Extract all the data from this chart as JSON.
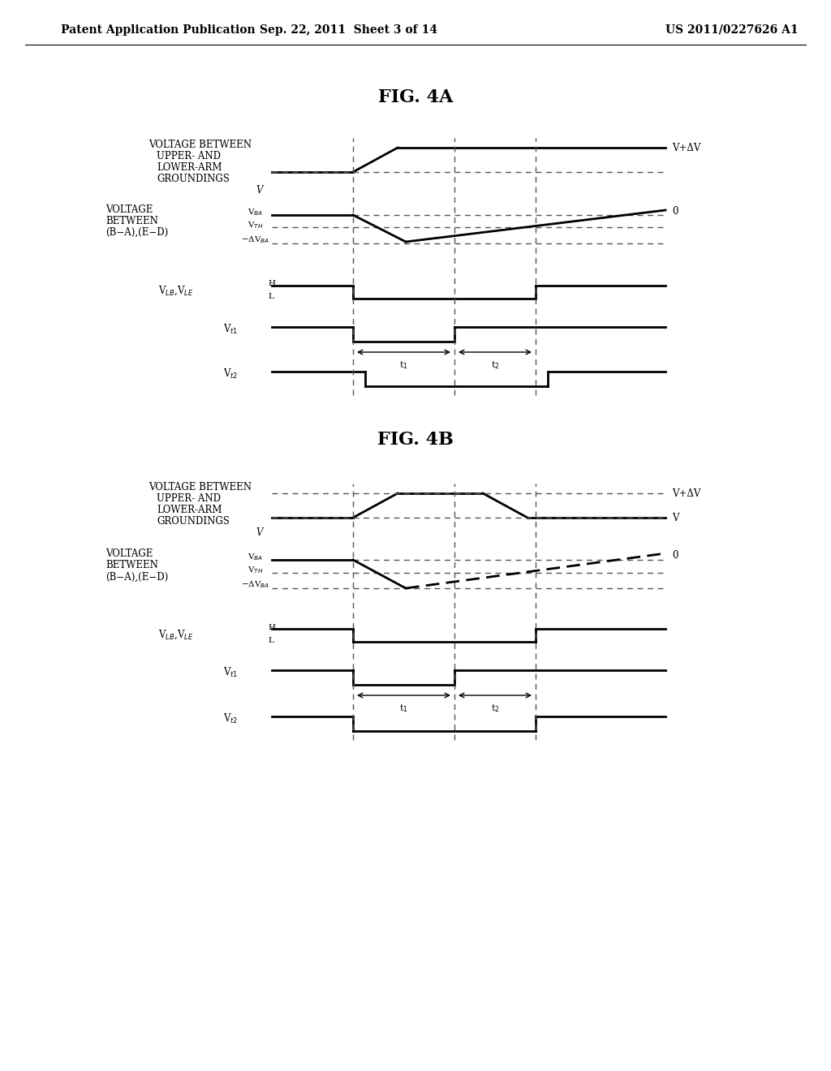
{
  "header_left": "Patent Application Publication",
  "header_mid": "Sep. 22, 2011  Sheet 3 of 14",
  "header_right": "US 2011/0227626 A1",
  "fig4a_title": "FIG. 4A",
  "fig4b_title": "FIG. 4B",
  "bg_color": "#ffffff",
  "line_color": "#000000",
  "dashed_color": "#555555",
  "label_fontsize": 8.5,
  "title_fontsize": 16
}
